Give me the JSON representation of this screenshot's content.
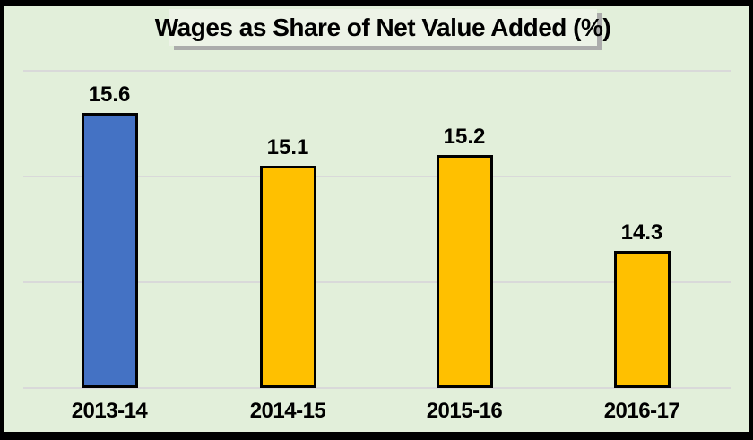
{
  "frame": {
    "background": "#E2EFDA",
    "border_color": "#000000"
  },
  "title": {
    "text": "Wages as Share of Net Value Added (%)",
    "background": "#EDF3E7",
    "shadow_color": "#ACACAC",
    "text_color": "#000000"
  },
  "chart_data": {
    "type": "bar",
    "title": "Wages as Share of Net Value Added (%)",
    "categories": [
      "2013-14",
      "2014-15",
      "2015-16",
      "2016-17"
    ],
    "values": [
      15.6,
      15.1,
      15.2,
      14.3
    ],
    "data_labels": [
      "15.6",
      "15.1",
      "15.2",
      "14.3"
    ],
    "bar_colors": [
      "#4472C4",
      "#FFC000",
      "#FFC000",
      "#FFC000"
    ],
    "bar_border_color": "#000000",
    "xlabel": "",
    "ylabel": "",
    "ylim": [
      13,
      16.6
    ],
    "gridline_values": [
      13,
      14,
      15,
      16
    ],
    "gridline_color": "#D9D9D9",
    "grid": "on",
    "legend": "none",
    "y_tick_labels_visible": false,
    "data_labels_visible": true
  }
}
